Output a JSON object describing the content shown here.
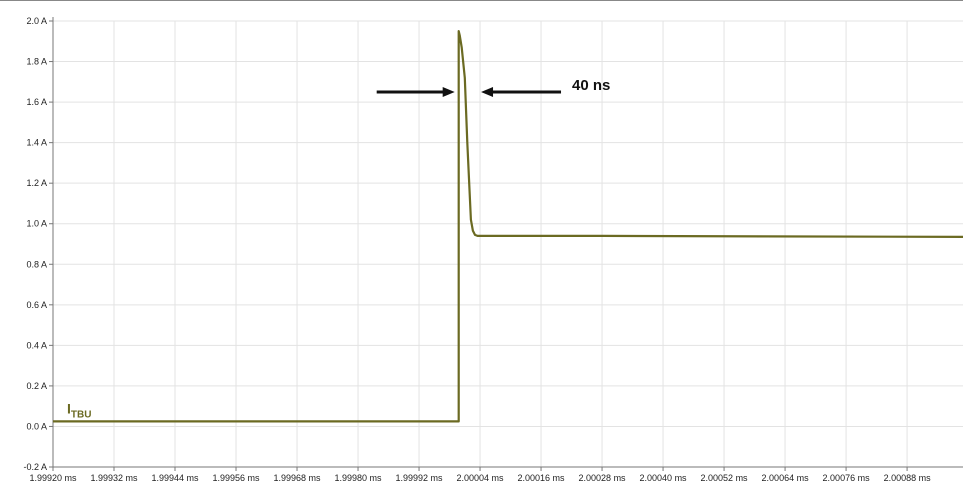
{
  "chart_data": {
    "type": "line",
    "y_tick_labels": [
      "-0.2 A",
      "0.0 A",
      "0.2 A",
      "0.4 A",
      "0.6 A",
      "0.8 A",
      "1.0 A",
      "1.2 A",
      "1.4 A",
      "1.6 A",
      "1.8 A",
      "2.0 A"
    ],
    "y_ticks": [
      -0.2,
      0.0,
      0.2,
      0.4,
      0.6,
      0.8,
      1.0,
      1.2,
      1.4,
      1.6,
      1.8,
      2.0
    ],
    "ylim": [
      -0.2,
      2.0
    ],
    "x_tick_labels": [
      "1.99920 ms",
      "1.99932 ms",
      "1.99944 ms",
      "1.99956 ms",
      "1.99968 ms",
      "1.99980 ms",
      "1.99992 ms",
      "2.00004 ms",
      "2.00016 ms",
      "2.00028 ms",
      "2.00040 ms",
      "2.00052 ms",
      "2.00064 ms",
      "2.00076 ms",
      "2.00088 ms"
    ],
    "x_ticks": [
      1.9992,
      1.99932,
      1.99944,
      1.99956,
      1.99968,
      1.9998,
      1.99992,
      2.00004,
      2.00016,
      2.00028,
      2.0004,
      2.00052,
      2.00064,
      2.00076,
      2.00088
    ],
    "xlim": [
      1.9992,
      2.00099
    ],
    "grid": true,
    "series": [
      {
        "name": "I",
        "name_subscript": "TBU",
        "color": "#6b6a22",
        "x": [
          1.9992,
          1.999995,
          1.999998,
          1.999998,
          2.0,
          2.000004,
          2.00001,
          2.000015,
          2.000022,
          2.000026,
          2.00003,
          2.000035,
          2.000042,
          2.00028,
          2.00099
        ],
        "y": [
          0.025,
          0.025,
          0.025,
          1.95,
          1.93,
          1.87,
          1.72,
          1.4,
          1.02,
          0.965,
          0.945,
          0.94,
          0.94,
          0.94,
          0.935
        ]
      }
    ],
    "annotation": {
      "text": "40 ns",
      "x_start": 1.999998,
      "x_end": 2.000038,
      "y": 1.65
    }
  }
}
